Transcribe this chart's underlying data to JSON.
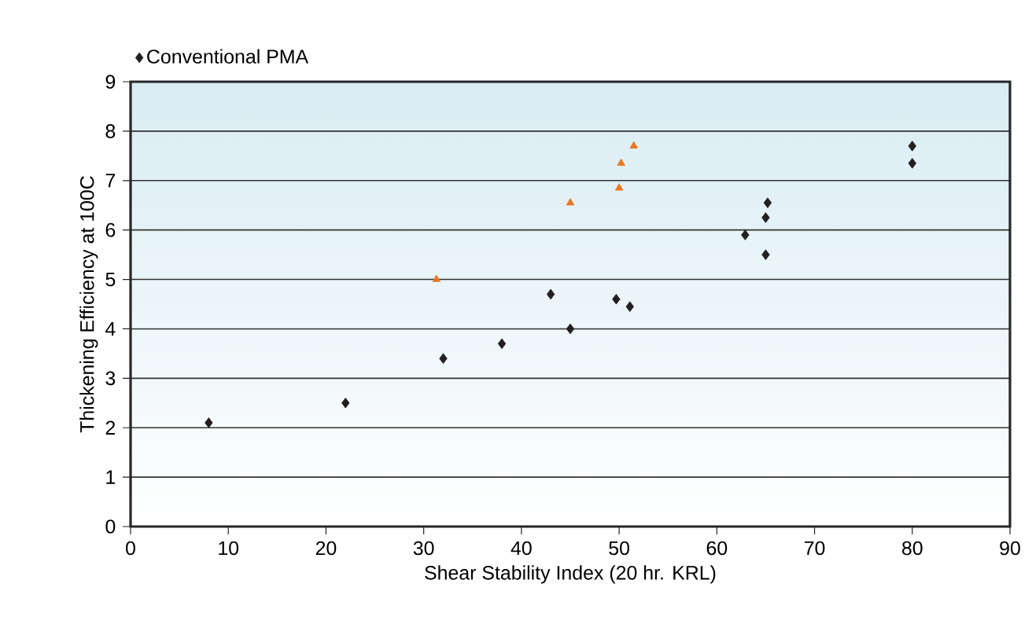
{
  "chart_data": {
    "type": "scatter",
    "xlabel": "Shear Stability Index (20 hr. KRL)",
    "ylabel": "Thickening Efficiency at 100C",
    "xlim": [
      0,
      90
    ],
    "xticks": [
      0,
      10,
      20,
      30,
      40,
      50,
      60,
      70,
      80,
      90
    ],
    "ylim": [
      0,
      9
    ],
    "yticks": [
      0,
      1,
      2,
      3,
      4,
      5,
      6,
      7,
      8,
      9
    ],
    "grid": "y",
    "legend": "top left",
    "series": [
      {
        "name": "Conventional PMA",
        "color": "#231f20",
        "marker": "diamond",
        "x": [
          8,
          22,
          32,
          38,
          43,
          45,
          49.7,
          51.1,
          62.9,
          65.2,
          65,
          65,
          80,
          80
        ],
        "values": [
          2.1,
          2.5,
          3.4,
          3.7,
          4.7,
          4.0,
          4.6,
          4.45,
          5.9,
          6.55,
          6.25,
          5.5,
          7.7,
          7.35
        ]
      },
      {
        "color": "#e87722",
        "marker": "triangle",
        "x": [
          31.3,
          45,
          50,
          50.2,
          51.5
        ],
        "values": [
          5.0,
          6.55,
          6.85,
          7.35,
          7.7
        ]
      }
    ]
  }
}
